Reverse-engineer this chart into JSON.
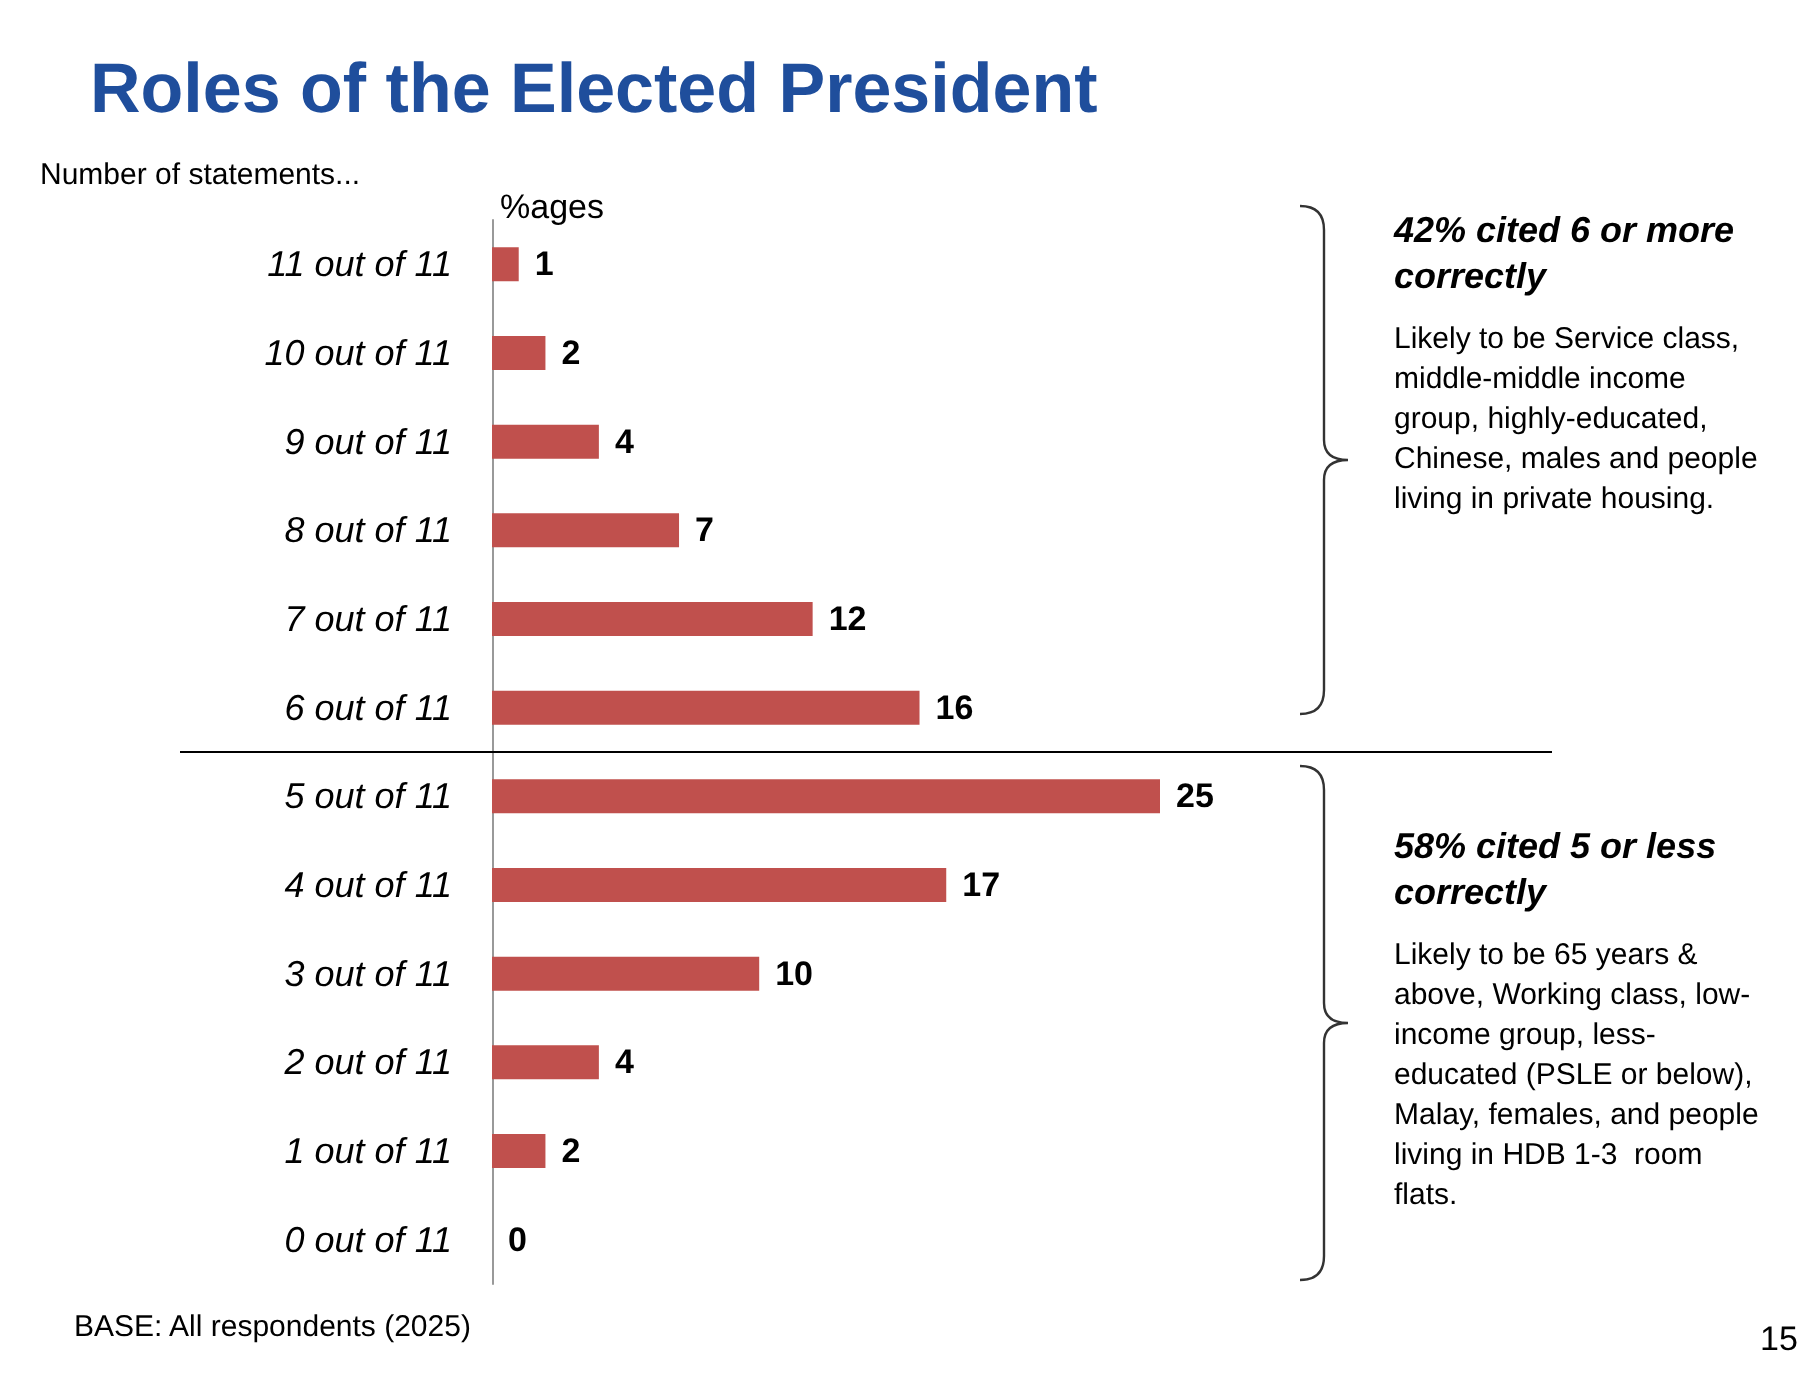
{
  "chart_data": {
    "type": "bar",
    "orientation": "horizontal",
    "title": "Roles of the Elected President",
    "ylabel": "Number of statements...",
    "xlabel": "%ages",
    "categories": [
      "11 out of 11",
      "10 out of 11",
      "9 out of 11",
      "8 out of 11",
      "7 out of 11",
      "6 out of 11",
      "5 out of 11",
      "4 out of 11",
      "3 out of 11",
      "2 out of 11",
      "1 out of 11",
      "0 out of 11"
    ],
    "values": [
      1,
      2,
      4,
      7,
      12,
      16,
      25,
      17,
      10,
      4,
      2,
      0
    ],
    "color": "#c0504d",
    "data_labels": true,
    "grid": false,
    "annotations": [
      "42% cited 6 or more correctly",
      "Likely to be Service class, middle-middle income group, highly-educated, Chinese, males and people living in private housing.",
      "58% cited 5 or less correctly",
      "Likely to be 65 years & above, Working class, low-income group, less-educated (PSLE or below), Malay, females, and people living in HDB 1-3  room flats.",
      "BASE: All respondents (2025)",
      "15"
    ]
  }
}
